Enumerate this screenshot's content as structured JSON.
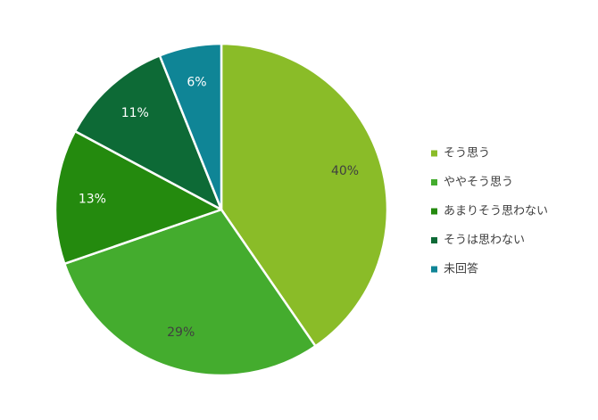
{
  "chart_data": {
    "type": "pie",
    "title": "",
    "start_angle_deg": 0,
    "direction": "clockwise",
    "legend_position": "right",
    "slices": [
      {
        "label": "そう思う",
        "value": 40,
        "value_label": "40%",
        "color": "#8ABC28"
      },
      {
        "label": "ややそう思う",
        "value": 29,
        "value_label": "29%",
        "color": "#44AC2E"
      },
      {
        "label": "あまりそう思わない",
        "value": 13,
        "value_label": "13%",
        "color": "#248A0E"
      },
      {
        "label": "そうは思わない",
        "value": 11,
        "value_label": "11%",
        "color": "#0D6A36"
      },
      {
        "label": "未回答",
        "value": 6,
        "value_label": "6%",
        "color": "#0F8596"
      }
    ]
  }
}
